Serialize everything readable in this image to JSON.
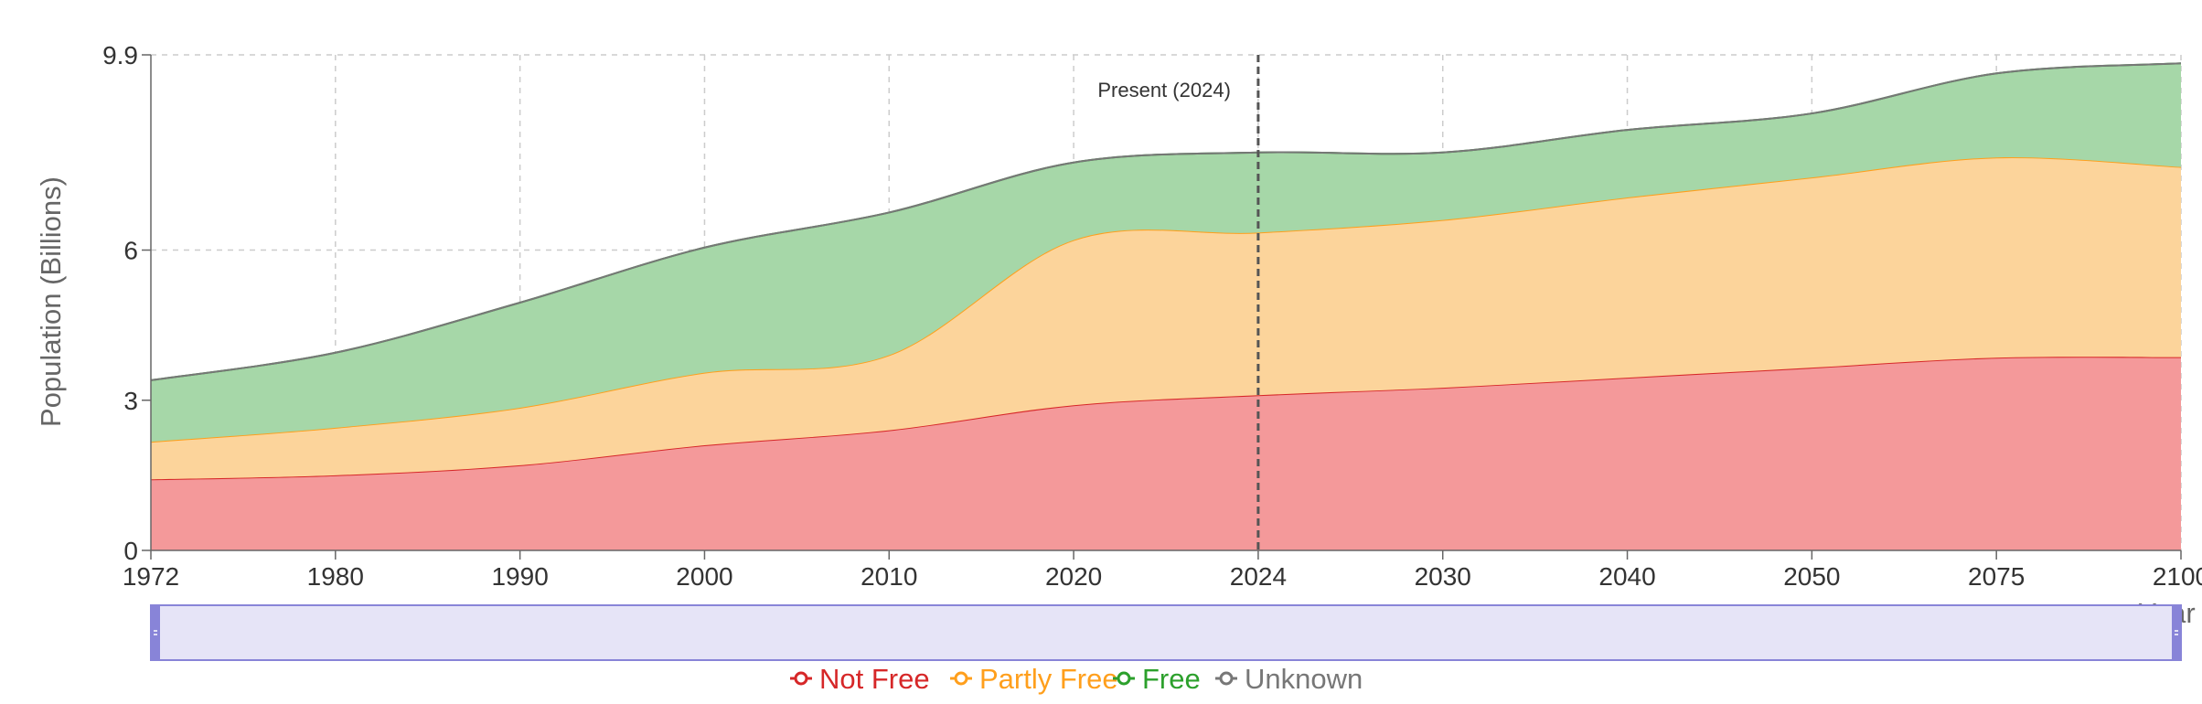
{
  "chart_data": {
    "type": "area",
    "stacked": true,
    "xlabel": "Year",
    "ylabel": "Population (Billions)",
    "x_ticks": [
      "1972",
      "1980",
      "1990",
      "2000",
      "2010",
      "2020",
      "2024",
      "2030",
      "2040",
      "2050",
      "2075",
      "2100"
    ],
    "y_ticks": [
      {
        "value": 0,
        "label": "0"
      },
      {
        "value": 3,
        "label": "3"
      },
      {
        "value": 6,
        "label": "6"
      },
      {
        "value": 9.9,
        "label": "9.9"
      }
    ],
    "ylim": [
      0,
      9.9
    ],
    "grid": true,
    "series": [
      {
        "name": "Not Free",
        "color": "#d62728",
        "fill": "#f4999a",
        "values": [
          1.42,
          1.5,
          1.7,
          2.1,
          2.4,
          2.9,
          3.1,
          3.25,
          3.45,
          3.65,
          3.85,
          3.86
        ]
      },
      {
        "name": "Partly Free",
        "color": "#ff9f1c",
        "fill": "#fcd49b",
        "values": [
          0.75,
          0.95,
          1.15,
          1.45,
          1.5,
          3.3,
          3.25,
          3.35,
          3.6,
          3.8,
          4.0,
          3.8
        ]
      },
      {
        "name": "Free",
        "color": "#2ca02c",
        "fill": "#a6d7a8",
        "values": [
          1.23,
          1.5,
          2.1,
          2.5,
          2.85,
          1.55,
          1.6,
          1.35,
          1.35,
          1.28,
          1.68,
          2.07
        ]
      },
      {
        "name": "Unknown",
        "color": "#777777",
        "fill": "#bbbbbb",
        "values": [
          0,
          0,
          0,
          0,
          0,
          0,
          0,
          0,
          0,
          0,
          0,
          0
        ]
      }
    ],
    "annotations": [
      {
        "x": "2024",
        "text": "Present (2024)"
      }
    ],
    "legend_position": "bottom",
    "brush": {
      "start": "1972",
      "end": "2100",
      "color": "#8884d8"
    }
  }
}
